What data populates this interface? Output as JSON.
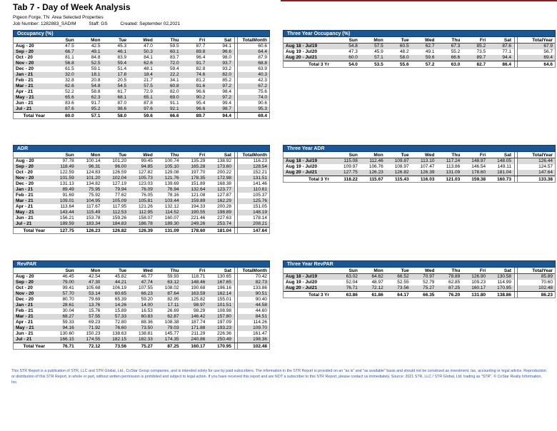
{
  "header": {
    "title": "Tab 7 - Day of Week Analysis",
    "subtitle": "Pigeon Forge, TN  Area Selected Properties",
    "job_number": "Job Number: 1282883_SADIM",
    "staff": "Staff: GS",
    "created": "Created: September 02,2021"
  },
  "colors": {
    "header_bar": "#1A5796",
    "stripe": "#D9D9D9",
    "footer_text": "#2E5496",
    "accent_line": "#8B1D1D"
  },
  "tables": {
    "occupancy": {
      "title": "Occupancy (%)",
      "day_columns": [
        "Sun",
        "Mon",
        "Tue",
        "Wed",
        "Thu",
        "Fri",
        "Sat"
      ],
      "total_label": "TotalMonth",
      "rows": [
        {
          "label": "Aug - 20",
          "values": [
            "47.5",
            "42.5",
            "45.3",
            "47.0",
            "59.5",
            "87.7",
            "94.1"
          ],
          "total": "60.6"
        },
        {
          "label": "Sep - 20",
          "values": [
            "66.7",
            "49.1",
            "46.1",
            "50.3",
            "60.1",
            "89.8",
            "96.6"
          ],
          "total": "64.4"
        },
        {
          "label": "Oct - 20",
          "values": [
            "81.1",
            "84.8",
            "83.9",
            "84.1",
            "83.7",
            "96.4",
            "98.0"
          ],
          "total": "87.9"
        },
        {
          "label": "Nov - 20",
          "values": [
            "56.8",
            "52.5",
            "59.4",
            "62.6",
            "72.0",
            "91.7",
            "93.7"
          ],
          "total": "68.8"
        },
        {
          "label": "Dec - 20",
          "values": [
            "61.5",
            "59.1",
            "51.4",
            "48.1",
            "59.4",
            "82.8",
            "93.2"
          ],
          "total": "63.9"
        },
        {
          "label": "Jan - 21",
          "values": [
            "32.0",
            "18.1",
            "17.8",
            "18.4",
            "22.2",
            "74.6",
            "82.0"
          ],
          "total": "40.3"
        },
        {
          "label": "Feb - 21",
          "values": [
            "32.8",
            "20.8",
            "20.5",
            "21.7",
            "34.1",
            "81.2",
            "85.2"
          ],
          "total": "42.3"
        },
        {
          "label": "Mar - 21",
          "values": [
            "62.6",
            "54.8",
            "54.5",
            "57.5",
            "60.8",
            "91.6",
            "97.2"
          ],
          "total": "67.2"
        },
        {
          "label": "Apr - 21",
          "values": [
            "52.2",
            "58.8",
            "61.7",
            "72.9",
            "82.0",
            "96.6",
            "98.4"
          ],
          "total": "75.6"
        },
        {
          "label": "May - 21",
          "values": [
            "65.6",
            "62.3",
            "68.1",
            "65.1",
            "69.0",
            "90.2",
            "97.2"
          ],
          "total": "74.0"
        },
        {
          "label": "Jun - 21",
          "values": [
            "83.6",
            "91.7",
            "87.0",
            "87.8",
            "91.1",
            "95.4",
            "99.4"
          ],
          "total": "90.6"
        },
        {
          "label": "Jul - 21",
          "values": [
            "87.6",
            "95.2",
            "98.6",
            "97.6",
            "92.1",
            "96.6",
            "98.7"
          ],
          "total": "95.3"
        }
      ],
      "footer_row": {
        "label": "Total Year",
        "values": [
          "60.0",
          "57.1",
          "58.0",
          "59.6",
          "66.6",
          "89.7",
          "94.4"
        ],
        "total": "69.4"
      }
    },
    "three_year_occupancy": {
      "title": "Three Year Occupancy (%)",
      "day_columns": [
        "Sun",
        "Mon",
        "Tue",
        "Wed",
        "Thu",
        "Fri",
        "Sat"
      ],
      "total_label": "TotalYear",
      "rows": [
        {
          "label": "Aug 18 - Jul19",
          "values": [
            "54.8",
            "57.5",
            "60.5",
            "62.7",
            "67.3",
            "85.2",
            "87.6"
          ],
          "total": "67.9"
        },
        {
          "label": "Aug 19 - Jul20",
          "values": [
            "47.3",
            "45.9",
            "48.2",
            "49.1",
            "55.2",
            "73.5",
            "77.1"
          ],
          "total": "56.7"
        },
        {
          "label": "Aug 20 - Jul21",
          "values": [
            "60.0",
            "57.1",
            "58.0",
            "59.6",
            "66.6",
            "89.7",
            "94.4"
          ],
          "total": "69.4"
        }
      ],
      "footer_row": {
        "label": "Total 3 Yr",
        "values": [
          "54.0",
          "53.5",
          "55.6",
          "57.2",
          "63.0",
          "82.7",
          "86.4"
        ],
        "total": "64.6"
      }
    },
    "adr": {
      "title": "ADR",
      "day_columns": [
        "Sun",
        "Mon",
        "Tue",
        "Wed",
        "Thu",
        "Fri",
        "Sat"
      ],
      "total_label": "TotalMonth",
      "rows": [
        {
          "label": "Aug - 20",
          "values": [
            "97.78",
            "100.14",
            "101.20",
            "99.45",
            "100.74",
            "135.29",
            "138.92"
          ],
          "total": "116.23"
        },
        {
          "label": "Sep - 20",
          "values": [
            "118.49",
            "96.31",
            "96.00",
            "94.85",
            "105.10",
            "165.28",
            "173.60"
          ],
          "total": "128.54"
        },
        {
          "label": "Oct - 20",
          "values": [
            "122.59",
            "124.83",
            "126.59",
            "127.82",
            "129.08",
            "197.70",
            "200.22"
          ],
          "total": "152.21"
        },
        {
          "label": "Nov - 20",
          "values": [
            "101.59",
            "101.20",
            "102.04",
            "105.73",
            "121.76",
            "178.35",
            "172.98"
          ],
          "total": "131.51"
        },
        {
          "label": "Dec - 20",
          "values": [
            "131.13",
            "134.82",
            "127.19",
            "123.03",
            "139.69",
            "151.89",
            "168.38"
          ],
          "total": "141.46"
        },
        {
          "label": "Jan - 21",
          "values": [
            "89.49",
            "75.95",
            "79.94",
            "76.09",
            "76.94",
            "132.64",
            "123.77"
          ],
          "total": "110.61"
        },
        {
          "label": "Feb - 21",
          "values": [
            "91.69",
            "75.92",
            "77.62",
            "76.05",
            "78.16",
            "121.08",
            "127.87"
          ],
          "total": "105.37"
        },
        {
          "label": "Mar - 21",
          "values": [
            "109.01",
            "104.95",
            "105.09",
            "105.81",
            "103.44",
            "159.89",
            "162.29"
          ],
          "total": "125.76"
        },
        {
          "label": "Apr - 21",
          "values": [
            "113.64",
            "117.67",
            "117.95",
            "121.26",
            "132.12",
            "194.33",
            "200.28"
          ],
          "total": "151.05"
        },
        {
          "label": "May - 21",
          "values": [
            "143.44",
            "115.49",
            "112.53",
            "112.95",
            "114.52",
            "190.55",
            "198.89"
          ],
          "total": "148.19"
        },
        {
          "label": "Jun - 21",
          "values": [
            "156.21",
            "153.78",
            "159.26",
            "158.07",
            "160.07",
            "221.46",
            "227.63"
          ],
          "total": "178.14"
        },
        {
          "label": "Jul - 21",
          "values": [
            "189.59",
            "183.34",
            "184.83",
            "186.78",
            "189.30",
            "249.26",
            "253.74"
          ],
          "total": "208.21"
        }
      ],
      "footer_row": {
        "label": "Total Year",
        "values": [
          "127.75",
          "126.23",
          "126.82",
          "126.39",
          "131.09",
          "178.60",
          "181.04"
        ],
        "total": "147.64"
      }
    },
    "three_year_adr": {
      "title": "Three Year ADR",
      "day_columns": [
        "Sun",
        "Mon",
        "Tue",
        "Wed",
        "Thu",
        "Fri",
        "Sat"
      ],
      "total_label": "TotalYear",
      "rows": [
        {
          "label": "Aug 18 - Jul19",
          "values": [
            "115.08",
            "112.46",
            "109.87",
            "113.10",
            "117.24",
            "148.97",
            "148.05"
          ],
          "total": "126.44"
        },
        {
          "label": "Aug 19 - Jul20",
          "values": [
            "109.97",
            "106.76",
            "108.97",
            "107.47",
            "113.86",
            "146.54",
            "149.11"
          ],
          "total": "124.57"
        },
        {
          "label": "Aug 20 - Jul21",
          "values": [
            "127.75",
            "126.23",
            "126.82",
            "126.39",
            "131.09",
            "178.60",
            "181.04"
          ],
          "total": "147.64"
        }
      ],
      "footer_row": {
        "label": "Total 3 Yr",
        "values": [
          "118.22",
          "115.67",
          "115.43",
          "116.03",
          "121.03",
          "159.38",
          "160.73"
        ],
        "total": "133.38"
      }
    },
    "revpar": {
      "title": "RevPAR",
      "day_columns": [
        "Sun",
        "Mon",
        "Tue",
        "Wed",
        "Thu",
        "Fri",
        "Sat"
      ],
      "total_label": "TotalMonth",
      "rows": [
        {
          "label": "Aug - 20",
          "values": [
            "46.45",
            "42.54",
            "45.82",
            "46.77",
            "59.93",
            "118.71",
            "130.65"
          ],
          "total": "70.42"
        },
        {
          "label": "Sep - 20",
          "values": [
            "79.00",
            "47.30",
            "44.21",
            "47.74",
            "63.12",
            "148.46",
            "167.65"
          ],
          "total": "82.73"
        },
        {
          "label": "Oct - 20",
          "values": [
            "99.41",
            "105.68",
            "106.19",
            "107.55",
            "108.02",
            "190.68",
            "196.16"
          ],
          "total": "133.86"
        },
        {
          "label": "Nov - 20",
          "values": [
            "57.70",
            "53.14",
            "60.65",
            "66.23",
            "87.64",
            "163.59",
            "162.14"
          ],
          "total": "90.51"
        },
        {
          "label": "Dec - 20",
          "values": [
            "80.70",
            "79.69",
            "65.39",
            "59.20",
            "82.95",
            "125.82",
            "155.01"
          ],
          "total": "90.40"
        },
        {
          "label": "Jan - 21",
          "values": [
            "28.61",
            "13.76",
            "14.26",
            "14.00",
            "17.11",
            "98.97",
            "101.51"
          ],
          "total": "44.58"
        },
        {
          "label": "Feb - 21",
          "values": [
            "30.04",
            "15.76",
            "15.89",
            "16.53",
            "26.69",
            "98.29",
            "108.98"
          ],
          "total": "44.60"
        },
        {
          "label": "Mar - 21",
          "values": [
            "68.27",
            "57.55",
            "57.33",
            "60.83",
            "62.87",
            "146.42",
            "157.80"
          ],
          "total": "84.51"
        },
        {
          "label": "Apr - 21",
          "values": [
            "59.33",
            "69.23",
            "72.80",
            "88.36",
            "108.38",
            "187.74",
            "197.09"
          ],
          "total": "114.26"
        },
        {
          "label": "May - 21",
          "values": [
            "94.16",
            "71.92",
            "76.60",
            "73.50",
            "79.03",
            "171.88",
            "193.23"
          ],
          "total": "109.70"
        },
        {
          "label": "Jun - 21",
          "values": [
            "130.60",
            "150.23",
            "138.63",
            "138.81",
            "145.77",
            "211.29",
            "226.36"
          ],
          "total": "161.47"
        },
        {
          "label": "Jul - 21",
          "values": [
            "166.15",
            "174.55",
            "182.15",
            "182.33",
            "174.35",
            "240.86",
            "250.49"
          ],
          "total": "198.36"
        }
      ],
      "footer_row": {
        "label": "Total Year",
        "values": [
          "76.71",
          "72.12",
          "73.56",
          "75.27",
          "87.25",
          "160.17",
          "170.95"
        ],
        "total": "102.48"
      }
    },
    "three_year_revpar": {
      "title": "Three Year RevPAR",
      "day_columns": [
        "Sun",
        "Mon",
        "Tue",
        "Wed",
        "Thu",
        "Fri",
        "Sat"
      ],
      "total_label": "TotalYear",
      "rows": [
        {
          "label": "Aug 18 - Jul19",
          "values": [
            "63.02",
            "64.62",
            "66.52",
            "70.97",
            "78.89",
            "126.90",
            "130.58"
          ],
          "total": "85.89"
        },
        {
          "label": "Aug 19 - Jul20",
          "values": [
            "52.04",
            "48.97",
            "52.55",
            "52.79",
            "62.85",
            "109.23",
            "114.99"
          ],
          "total": "70.60"
        },
        {
          "label": "Aug 20 - Jul21",
          "values": [
            "76.71",
            "72.12",
            "73.56",
            "75.27",
            "87.25",
            "160.17",
            "170.95"
          ],
          "total": "102.48"
        }
      ],
      "footer_row": {
        "label": "Total 3 Yr",
        "values": [
          "63.86",
          "61.86",
          "64.17",
          "66.35",
          "76.20",
          "131.80",
          "138.86"
        ],
        "total": "86.23"
      }
    }
  },
  "footer": {
    "disclaimer": "This STR Report is a publication of STR, LLC and STR Global, Ltd., CoStar Group companies, and is intended solely for use by paid subscribers. The information in the STR Report is provided on an \"as is\" and \"as available\" basis and should not be construed as investment, tax, accounting or legal advice. Reproduction or distribution of this STR Report, in whole or part, without written permission is prohibited and subject to legal action. If you have received this report and are NOT a subscriber to this STR Report, please contact us immediately. Source: 2021 STR, LLC / STR Global, Ltd. trading as \"STR\". © CoStar Realty Information, Inc."
  }
}
